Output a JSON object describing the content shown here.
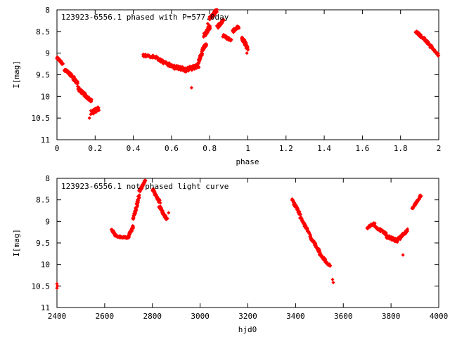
{
  "colors": {
    "points": "#ff0000",
    "axes": "#000000",
    "background": "#ffffff"
  },
  "chart_data": [
    {
      "type": "scatter",
      "title": "123923-6556.1 phased with P=577.0day",
      "xlabel": "phase",
      "ylabel": "I[mag]",
      "xlim": [
        0,
        2
      ],
      "ylim": [
        8,
        11
      ],
      "y_inverted": true,
      "grid": false,
      "marker": "diamond",
      "xticks": [
        "0",
        "0.2",
        "0.4",
        "0.6",
        "0.8",
        "1",
        "1.2",
        "1.4",
        "1.6",
        "1.8",
        "2"
      ],
      "yticks": [
        "8",
        "8.5",
        "9",
        "9.5",
        "10",
        "10.5",
        "11"
      ],
      "segments": [
        [
          0.0,
          9.1,
          0.03,
          9.25,
          0.02
        ],
        [
          0.04,
          9.38,
          0.07,
          9.48,
          0.03
        ],
        [
          0.07,
          9.5,
          0.11,
          9.7,
          0.04
        ],
        [
          0.11,
          9.8,
          0.15,
          9.98,
          0.04
        ],
        [
          0.15,
          10.0,
          0.18,
          10.1,
          0.03
        ],
        [
          0.18,
          10.38,
          0.22,
          10.28,
          0.05
        ],
        [
          0.45,
          9.05,
          0.53,
          9.1,
          0.03
        ],
        [
          0.53,
          9.15,
          0.6,
          9.3,
          0.04
        ],
        [
          0.6,
          9.3,
          0.68,
          9.4,
          0.05
        ],
        [
          0.68,
          9.38,
          0.74,
          9.3,
          0.05
        ],
        [
          0.74,
          9.2,
          0.76,
          9.0,
          0.03
        ],
        [
          0.76,
          8.95,
          0.78,
          8.8,
          0.03
        ],
        [
          0.77,
          8.6,
          0.8,
          8.4,
          0.05
        ],
        [
          0.8,
          8.2,
          0.84,
          8.0,
          0.04
        ],
        [
          0.84,
          8.4,
          0.87,
          8.25,
          0.03
        ],
        [
          0.87,
          8.6,
          0.91,
          8.7,
          0.03
        ],
        [
          0.92,
          8.5,
          0.95,
          8.4,
          0.03
        ],
        [
          0.97,
          8.65,
          1.0,
          8.9,
          0.04
        ],
        [
          1.88,
          8.5,
          1.93,
          8.7,
          0.03
        ],
        [
          1.93,
          8.7,
          2.0,
          9.05,
          0.03
        ]
      ],
      "points": [
        [
          0.705,
          9.8
        ],
        [
          0.17,
          10.5
        ],
        [
          0.995,
          9.0
        ],
        [
          0.79,
          8.32
        ]
      ]
    },
    {
      "type": "scatter",
      "title": "123923-6556.1 not phased light curve",
      "xlabel": "hjd0",
      "ylabel": "I[mag]",
      "xlim": [
        2400,
        4000
      ],
      "ylim": [
        8,
        11
      ],
      "y_inverted": true,
      "grid": false,
      "marker": "diamond",
      "xticks": [
        "2400",
        "2600",
        "2800",
        "3000",
        "3200",
        "3400",
        "3600",
        "3800",
        "4000"
      ],
      "yticks": [
        "8",
        "8.5",
        "9",
        "9.5",
        "10",
        "10.5",
        "11"
      ],
      "segments": [
        [
          2630,
          9.2,
          2650,
          9.35,
          0.02
        ],
        [
          2650,
          9.35,
          2700,
          9.38,
          0.02
        ],
        [
          2700,
          9.35,
          2720,
          9.1,
          0.02
        ],
        [
          2720,
          8.95,
          2745,
          8.4,
          0.02
        ],
        [
          2745,
          8.3,
          2770,
          8.05,
          0.02
        ],
        [
          2800,
          8.25,
          2830,
          8.55,
          0.02
        ],
        [
          2830,
          8.65,
          2860,
          8.95,
          0.03
        ],
        [
          3385,
          8.5,
          3420,
          8.85,
          0.02
        ],
        [
          3420,
          8.9,
          3460,
          9.3,
          0.02
        ],
        [
          3460,
          9.35,
          3500,
          9.7,
          0.02
        ],
        [
          3500,
          9.75,
          3545,
          10.05,
          0.02
        ],
        [
          3700,
          9.15,
          3730,
          9.05,
          0.02
        ],
        [
          3730,
          9.1,
          3780,
          9.3,
          0.03
        ],
        [
          3780,
          9.35,
          3830,
          9.45,
          0.04
        ],
        [
          3830,
          9.42,
          3870,
          9.2,
          0.03
        ],
        [
          3890,
          8.7,
          3925,
          8.4,
          0.02
        ]
      ],
      "points": [
        [
          2400,
          10.45
        ],
        [
          2400,
          10.55
        ],
        [
          2402,
          10.5
        ],
        [
          3850,
          9.78
        ],
        [
          3555,
          10.35
        ],
        [
          3558,
          10.42
        ],
        [
          2868,
          8.8
        ]
      ]
    }
  ]
}
